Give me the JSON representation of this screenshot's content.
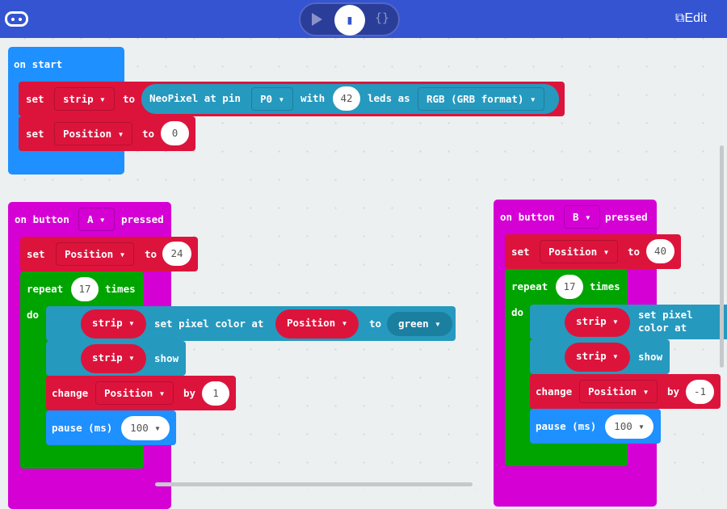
{
  "header": {
    "logo_icon": "microbit-logo-icon",
    "play_icon": "play-icon",
    "blocks_icon": "puzzle-icon",
    "js_label": "{}",
    "edit_label": "Edit",
    "edit_icon": "external-link-icon"
  },
  "colors": {
    "header": "#3454d1",
    "variables": "#dc143c",
    "neopixel": "#2699bf",
    "input": "#d400d4",
    "loops": "#00a400",
    "basic": "#1e90ff"
  },
  "on_start": {
    "label": "on start",
    "set_strip": {
      "set": "set",
      "var": "strip",
      "to": "to",
      "np_text": "NeoPixel at pin",
      "pin": "P0",
      "with": "with",
      "leds": "42",
      "leds_as": "leds as",
      "mode": "RGB (GRB format)"
    },
    "set_pos": {
      "set": "set",
      "var": "Position",
      "to": "to",
      "value": "0"
    }
  },
  "button_a": {
    "on": "on button",
    "button": "A",
    "pressed": "pressed",
    "set": "set",
    "var": "Position",
    "to": "to",
    "value": "24",
    "repeat": "repeat",
    "times_value": "17",
    "times": "times",
    "do": "do",
    "strip": "strip",
    "set_pixel": "set pixel color at",
    "pos": "Position",
    "to2": "to",
    "color": "green",
    "show": "show",
    "change": "change",
    "by": "by",
    "by_value": "1",
    "pause": "pause (ms)",
    "pause_value": "100"
  },
  "button_b": {
    "on": "on button",
    "button": "B",
    "pressed": "pressed",
    "set": "set",
    "var": "Position",
    "to": "to",
    "value": "40",
    "repeat": "repeat",
    "times_value": "17",
    "times": "times",
    "do": "do",
    "strip": "strip",
    "set_pixel": "set pixel color at",
    "show": "show",
    "change": "change",
    "by": "by",
    "by_value": "-1",
    "pause": "pause (ms)",
    "pause_value": "100"
  }
}
